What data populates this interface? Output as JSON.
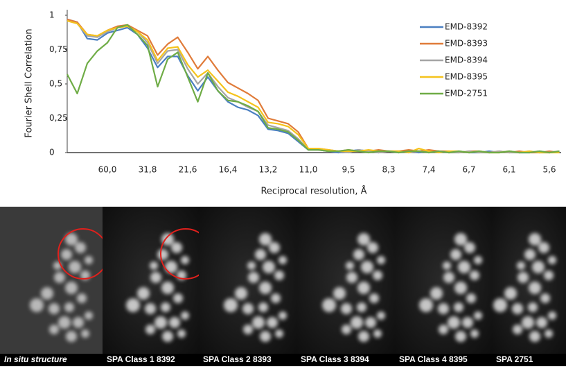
{
  "chart_data": {
    "type": "line",
    "y_label": "Fourier Shell Correlation",
    "x_label": "Reciprocal resolution, Å",
    "categories": [
      null,
      null,
      null,
      null,
      "60,0",
      null,
      null,
      null,
      "31,8",
      null,
      null,
      null,
      "21,6",
      null,
      null,
      null,
      "16,4",
      null,
      null,
      null,
      "13,2",
      null,
      null,
      null,
      "11,0",
      null,
      null,
      null,
      "9,5",
      null,
      null,
      null,
      "8,3",
      null,
      null,
      null,
      "7,4",
      null,
      null,
      null,
      "6,7",
      null,
      null,
      null,
      "6,1",
      null,
      null,
      null,
      "5,6",
      null
    ],
    "ylim": [
      0,
      1
    ],
    "yticks": [
      0,
      {
        "value": 0.25,
        "label": "0,25"
      },
      {
        "value": 0.5,
        "label": "0,5"
      },
      {
        "value": 0.75,
        "label": "0,75"
      },
      1
    ],
    "grid": false,
    "legend": "upper right",
    "series": [
      {
        "name": "EMD-8392",
        "color": "#4a7fc1",
        "values": [
          0.97,
          0.95,
          0.83,
          0.82,
          0.87,
          0.89,
          0.91,
          0.86,
          0.76,
          0.62,
          0.7,
          0.7,
          0.56,
          0.45,
          0.55,
          0.45,
          0.37,
          0.33,
          0.31,
          0.27,
          0.17,
          0.16,
          0.14,
          0.08,
          0.02,
          0.02,
          0.01,
          0.0,
          0.01,
          0.02,
          0.01,
          0.0,
          0.01,
          0.0,
          0.01,
          0.0,
          0.01,
          0.01,
          0.0,
          0.01,
          0.0,
          0.0,
          0.01,
          0.0,
          0.01,
          0.0,
          0.0,
          0.01,
          0.0,
          0.01
        ]
      },
      {
        "name": "EMD-8393",
        "color": "#e07b39",
        "values": [
          0.97,
          0.95,
          0.86,
          0.85,
          0.89,
          0.92,
          0.93,
          0.89,
          0.85,
          0.71,
          0.79,
          0.84,
          0.73,
          0.61,
          0.7,
          0.6,
          0.51,
          0.47,
          0.43,
          0.38,
          0.25,
          0.23,
          0.21,
          0.15,
          0.03,
          0.03,
          0.02,
          0.01,
          0.02,
          0.01,
          0.01,
          0.02,
          0.01,
          0.01,
          0.02,
          0.01,
          0.02,
          0.01,
          0.01,
          0.0,
          0.01,
          0.01,
          0.0,
          0.01,
          0.0,
          0.01,
          0.0,
          0.0,
          0.01,
          0.0
        ]
      },
      {
        "name": "EMD-8394",
        "color": "#a5a5a5",
        "values": [
          0.96,
          0.94,
          0.85,
          0.84,
          0.88,
          0.91,
          0.92,
          0.88,
          0.8,
          0.65,
          0.74,
          0.75,
          0.61,
          0.5,
          0.58,
          0.48,
          0.4,
          0.37,
          0.33,
          0.3,
          0.2,
          0.18,
          0.16,
          0.1,
          0.02,
          0.02,
          0.01,
          0.01,
          0.0,
          0.02,
          0.01,
          0.0,
          0.01,
          0.01,
          0.0,
          0.01,
          0.0,
          0.01,
          0.0,
          0.0,
          0.01,
          0.0,
          0.0,
          0.01,
          0.0,
          0.0,
          0.01,
          0.0,
          0.0,
          0.01
        ]
      },
      {
        "name": "EMD-8395",
        "color": "#f5c31c",
        "values": [
          0.96,
          0.94,
          0.86,
          0.85,
          0.89,
          0.91,
          0.92,
          0.88,
          0.82,
          0.67,
          0.76,
          0.77,
          0.64,
          0.55,
          0.6,
          0.52,
          0.44,
          0.41,
          0.37,
          0.33,
          0.22,
          0.21,
          0.19,
          0.13,
          0.03,
          0.03,
          0.02,
          0.01,
          0.01,
          0.01,
          0.02,
          0.01,
          0.01,
          0.01,
          0.0,
          0.03,
          0.01,
          0.0,
          0.01,
          0.01,
          0.0,
          0.01,
          0.0,
          0.0,
          0.01,
          0.0,
          0.01,
          0.0,
          0.0,
          0.0
        ]
      },
      {
        "name": "EMD-2751",
        "color": "#6fac46",
        "values": [
          0.57,
          0.43,
          0.65,
          0.74,
          0.8,
          0.91,
          0.93,
          0.86,
          0.78,
          0.48,
          0.68,
          0.73,
          0.55,
          0.37,
          0.58,
          0.45,
          0.38,
          0.37,
          0.34,
          0.3,
          0.18,
          0.17,
          0.15,
          0.09,
          0.02,
          0.02,
          0.01,
          0.01,
          0.02,
          0.01,
          0.0,
          0.01,
          0.01,
          0.0,
          0.01,
          0.01,
          0.0,
          0.01,
          0.0,
          0.01,
          0.0,
          0.01,
          0.0,
          0.0,
          0.01,
          0.0,
          0.0,
          0.01,
          0.0,
          0.01
        ]
      }
    ]
  },
  "panels": [
    {
      "label": "In situ structure"
    },
    {
      "label": "SPA Class 1 8392"
    },
    {
      "label": "SPA Class 2 8393"
    },
    {
      "label": "SPA Class 3 8394"
    },
    {
      "label": "SPA Class 4 8395"
    },
    {
      "label": "SPA 2751"
    }
  ]
}
